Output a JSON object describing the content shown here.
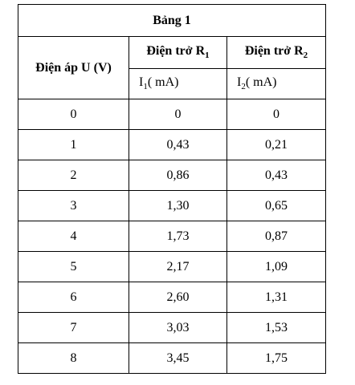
{
  "table": {
    "title": "Bảng 1",
    "header": {
      "voltage": "Điện áp U (V)",
      "r1": {
        "text": "Điện trở R",
        "sub": "1"
      },
      "r2": {
        "text": "Điện trở R",
        "sub": "2"
      },
      "i1": {
        "text": "I",
        "sub": "1",
        "unit": "( mA)"
      },
      "i2": {
        "text": "I",
        "sub": "2",
        "unit": "( mA)"
      }
    },
    "rows": [
      [
        "0",
        "0",
        "0"
      ],
      [
        "1",
        "0,43",
        "0,21"
      ],
      [
        "2",
        "0,86",
        "0,43"
      ],
      [
        "3",
        "1,30",
        "0,65"
      ],
      [
        "4",
        "1,73",
        "0,87"
      ],
      [
        "5",
        "2,17",
        "1,09"
      ],
      [
        "6",
        "2,60",
        "1,31"
      ],
      [
        "7",
        "3,03",
        "1,53"
      ],
      [
        "8",
        "3,45",
        "1,75"
      ]
    ]
  }
}
